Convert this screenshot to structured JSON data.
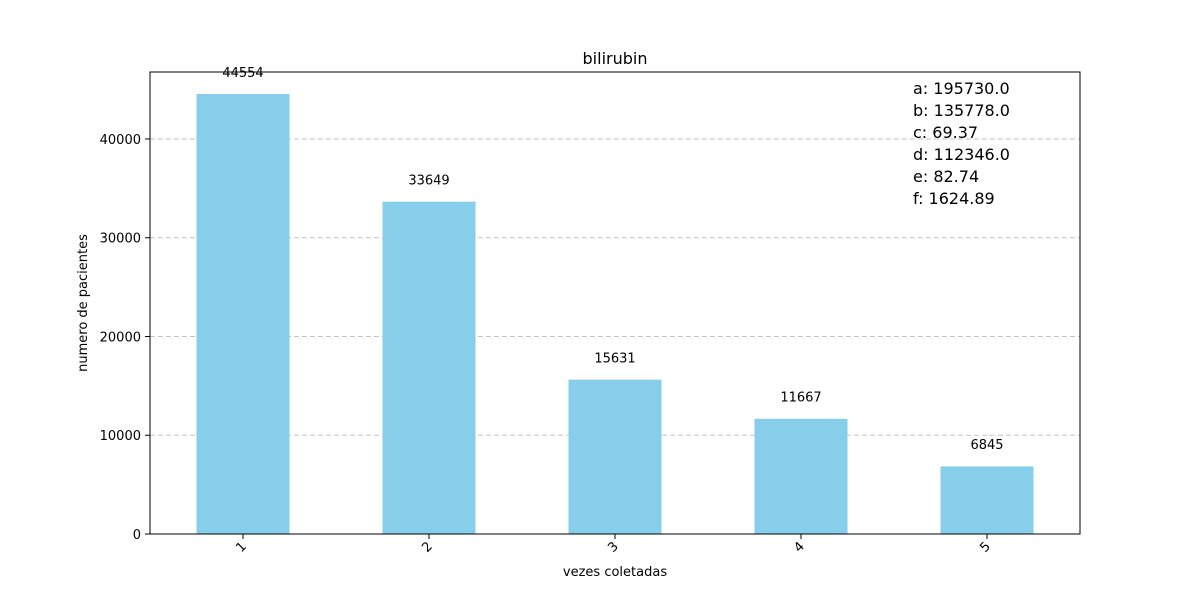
{
  "chart_data": {
    "type": "bar",
    "title": "bilirubin",
    "xlabel": "vezes coletadas",
    "ylabel": "numero de pacientes",
    "categories": [
      "1",
      "2",
      "3",
      "4",
      "5"
    ],
    "values": [
      44554,
      33649,
      15631,
      11667,
      6845
    ],
    "data_labels": [
      "44554",
      "33649",
      "15631",
      "11667",
      "6845"
    ],
    "ylim": [
      0,
      46782
    ],
    "yticks": [
      0,
      10000,
      20000,
      30000,
      40000
    ],
    "ytick_labels": [
      "0",
      "10000",
      "20000",
      "30000",
      "40000"
    ],
    "grid": "y-dashed",
    "bar_color": "#87ceeb",
    "stats_box": {
      "placement": "top-right",
      "lines": [
        "a: 195730.0",
        "b: 135778.0",
        "c: 69.37",
        "d: 112346.0",
        "e: 82.74",
        "f: 1624.89"
      ]
    }
  }
}
